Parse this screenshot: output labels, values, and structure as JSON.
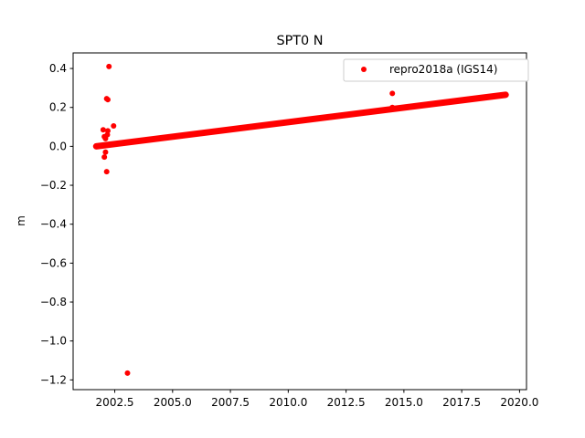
{
  "chart_data": {
    "type": "scatter",
    "title": "SPT0 N",
    "xlabel": "",
    "ylabel": "m",
    "xlim": [
      2000.7,
      2020.3
    ],
    "ylim": [
      -1.25,
      0.48
    ],
    "x_ticks": [
      2002.5,
      2005.0,
      2007.5,
      2010.0,
      2012.5,
      2015.0,
      2017.5,
      2020.0
    ],
    "x_tick_labels": [
      "2002.5",
      "2005.0",
      "2007.5",
      "2010.0",
      "2012.5",
      "2015.0",
      "2017.5",
      "2020.0"
    ],
    "y_ticks": [
      0.4,
      0.2,
      0.0,
      -0.2,
      -0.4,
      -0.6,
      -0.8,
      -1.0,
      -1.2
    ],
    "y_tick_labels": [
      "0.4",
      "0.2",
      "0.0",
      "−0.2",
      "−0.4",
      "−0.6",
      "−0.8",
      "−1.0",
      "−1.2"
    ],
    "grid": false,
    "legend_position": "top-right",
    "series": [
      {
        "name": "repro2018a (IGS14)",
        "color": "#ff0000",
        "marker": "circle",
        "trend": {
          "x_start": 2001.7,
          "x_end": 2019.4,
          "y_start": 0.0,
          "y_end": 0.265
        },
        "points": [
          {
            "x": 2002.25,
            "y": 0.41
          },
          {
            "x": 2002.15,
            "y": 0.245
          },
          {
            "x": 2002.2,
            "y": 0.24
          },
          {
            "x": 2002.45,
            "y": 0.105
          },
          {
            "x": 2002.0,
            "y": 0.085
          },
          {
            "x": 2002.2,
            "y": 0.08
          },
          {
            "x": 2002.05,
            "y": 0.05
          },
          {
            "x": 2002.1,
            "y": 0.04
          },
          {
            "x": 2002.18,
            "y": 0.06
          },
          {
            "x": 2002.1,
            "y": -0.03
          },
          {
            "x": 2002.05,
            "y": -0.055
          },
          {
            "x": 2002.15,
            "y": -0.13
          },
          {
            "x": 2003.05,
            "y": -1.165
          },
          {
            "x": 2014.5,
            "y": 0.272
          },
          {
            "x": 2014.5,
            "y": 0.2
          }
        ]
      }
    ]
  }
}
